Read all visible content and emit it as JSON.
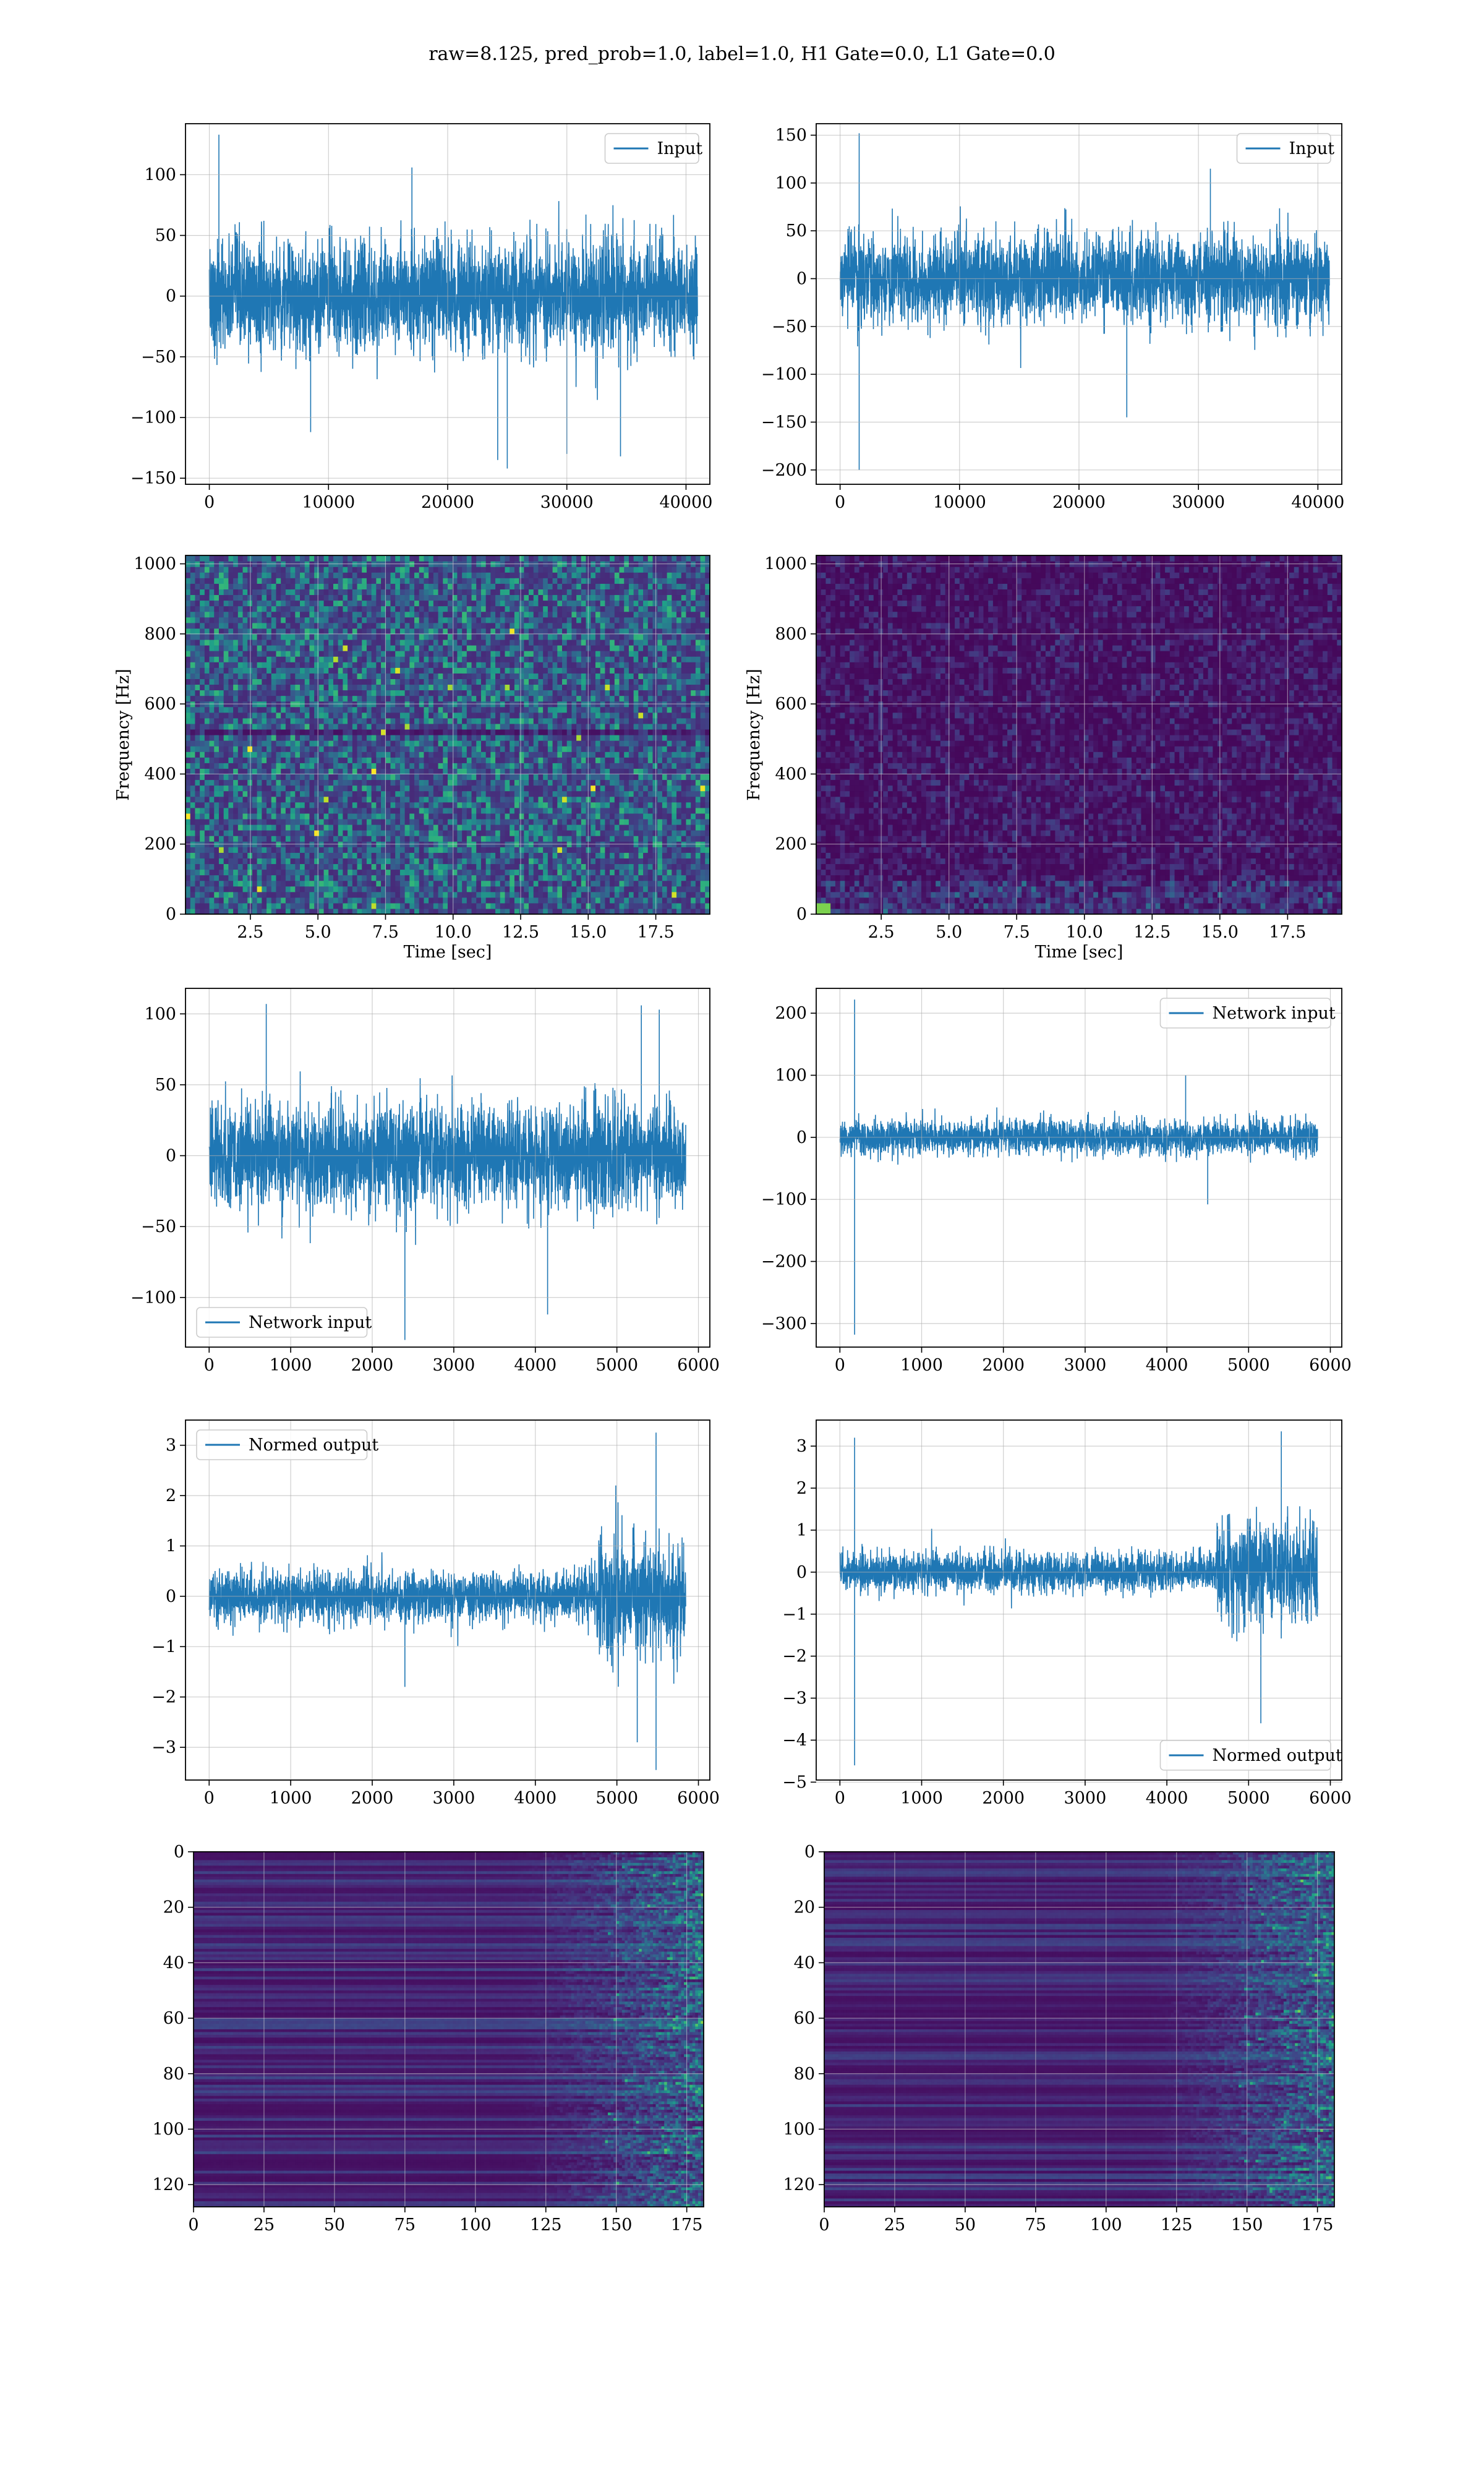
{
  "figure": {
    "title": "raw=8.125, pred_prob=1.0, label=1.0, H1 Gate=0.0, L1 Gate=0.0",
    "colors": {
      "line": "#1f77b4",
      "grid": "#b0b0b0",
      "axes": "#000000",
      "viridis": [
        "#440154",
        "#482878",
        "#3e4989",
        "#31688e",
        "#26828e",
        "#1f9e89",
        "#35b779",
        "#6ece58",
        "#b5de2b",
        "#fde725"
      ]
    }
  },
  "chart_data": [
    {
      "id": "input-h1",
      "type": "line",
      "ylabel": "",
      "xlabel": "",
      "xlim": [
        -2000,
        42000
      ],
      "ylim": [
        -155,
        142
      ],
      "xticks": [
        0,
        10000,
        20000,
        30000,
        40000
      ],
      "xtick_labels": [
        "0",
        "10000",
        "20000",
        "30000",
        "40000"
      ],
      "yticks": [
        -150,
        -100,
        -50,
        0,
        50,
        100
      ],
      "ytick_labels": [
        "−150",
        "−100",
        "−50",
        "0",
        "50",
        "100"
      ],
      "legend": {
        "label": "Input",
        "position": "upper-right"
      },
      "series": [
        {
          "name": "Input",
          "x_range": [
            0,
            40960
          ],
          "band": [
            -50,
            50
          ],
          "peaks": [
            [
              800,
              133
            ],
            [
              17000,
              106
            ],
            [
              8500,
              -112
            ],
            [
              24200,
              -135
            ],
            [
              25000,
              -142
            ],
            [
              30000,
              -130
            ],
            [
              34500,
              -132
            ]
          ]
        }
      ],
      "grid": true
    },
    {
      "id": "input-l1",
      "type": "line",
      "ylabel": "",
      "xlabel": "",
      "xlim": [
        -2000,
        42000
      ],
      "ylim": [
        -215,
        162
      ],
      "xticks": [
        0,
        10000,
        20000,
        30000,
        40000
      ],
      "xtick_labels": [
        "0",
        "10000",
        "20000",
        "30000",
        "40000"
      ],
      "yticks": [
        -200,
        -150,
        -100,
        -50,
        0,
        50,
        100,
        150
      ],
      "ytick_labels": [
        "−200",
        "−150",
        "−100",
        "−50",
        "0",
        "50",
        "100",
        "150"
      ],
      "legend": {
        "label": "Input",
        "position": "upper-right"
      },
      "series": [
        {
          "name": "Input",
          "x_range": [
            0,
            40960
          ],
          "band": [
            -50,
            50
          ],
          "peaks": [
            [
              1600,
              152
            ],
            [
              1600,
              -200
            ],
            [
              24000,
              -145
            ],
            [
              31000,
              115
            ]
          ]
        }
      ],
      "grid": true
    },
    {
      "id": "spectrogram-h1",
      "type": "heatmap",
      "xlabel": "Time [sec]",
      "ylabel": "Frequency [Hz]",
      "xlim": [
        0.1,
        19.5
      ],
      "ylim": [
        0,
        1024
      ],
      "xticks": [
        2.5,
        5.0,
        7.5,
        10.0,
        12.5,
        15.0,
        17.5
      ],
      "xtick_labels": [
        "2.5",
        "5.0",
        "7.5",
        "10.0",
        "12.5",
        "15.0",
        "17.5"
      ],
      "yticks": [
        0,
        200,
        400,
        600,
        800,
        1000
      ],
      "ytick_labels": [
        "0",
        "200",
        "400",
        "600",
        "800",
        "1000"
      ],
      "intensity": "broadband noise with a dark line near 500 Hz and bright bins near 0 Hz",
      "grid": true
    },
    {
      "id": "spectrogram-l1",
      "type": "heatmap",
      "xlabel": "Time [sec]",
      "ylabel": "Frequency [Hz]",
      "xlim": [
        0.1,
        19.5
      ],
      "ylim": [
        0,
        1024
      ],
      "xticks": [
        2.5,
        5.0,
        7.5,
        10.0,
        12.5,
        15.0,
        17.5
      ],
      "xtick_labels": [
        "2.5",
        "5.0",
        "7.5",
        "10.0",
        "12.5",
        "15.0",
        "17.5"
      ],
      "yticks": [
        0,
        200,
        400,
        600,
        800,
        1000
      ],
      "ytick_labels": [
        "0",
        "200",
        "400",
        "600",
        "800",
        "1000"
      ],
      "intensity": "mostly dark with low-frequency energy and a bright spot near 0.6 s, 40 Hz",
      "grid": true
    },
    {
      "id": "network-input-h1",
      "type": "line",
      "ylabel": "",
      "xlabel": "",
      "xlim": [
        -290,
        6140
      ],
      "ylim": [
        -135,
        118
      ],
      "xticks": [
        0,
        1000,
        2000,
        3000,
        4000,
        5000,
        6000
      ],
      "xtick_labels": [
        "0",
        "1000",
        "2000",
        "3000",
        "4000",
        "5000",
        "6000"
      ],
      "yticks": [
        -100,
        -50,
        0,
        50,
        100
      ],
      "ytick_labels": [
        "−100",
        "−50",
        "0",
        "50",
        "100"
      ],
      "legend": {
        "label": "Network input",
        "position": "lower-left"
      },
      "series": [
        {
          "name": "Network input",
          "x_range": [
            0,
            5844
          ],
          "band": [
            -40,
            40
          ],
          "peaks": [
            [
              700,
              107
            ],
            [
              2400,
              -130
            ],
            [
              4150,
              -112
            ],
            [
              5300,
              106
            ],
            [
              5520,
              103
            ]
          ]
        }
      ],
      "grid": true
    },
    {
      "id": "network-input-l1",
      "type": "line",
      "ylabel": "",
      "xlabel": "",
      "xlim": [
        -290,
        6140
      ],
      "ylim": [
        -338,
        240
      ],
      "xticks": [
        0,
        1000,
        2000,
        3000,
        4000,
        5000,
        6000
      ],
      "xtick_labels": [
        "0",
        "1000",
        "2000",
        "3000",
        "4000",
        "5000",
        "6000"
      ],
      "yticks": [
        -300,
        -200,
        -100,
        0,
        100,
        200
      ],
      "ytick_labels": [
        "−300",
        "−200",
        "−100",
        "0",
        "100",
        "200"
      ],
      "legend": {
        "label": "Network input",
        "position": "upper-right"
      },
      "series": [
        {
          "name": "Network input",
          "x_range": [
            0,
            5844
          ],
          "band": [
            -30,
            30
          ],
          "peaks": [
            [
              180,
              222
            ],
            [
              180,
              -318
            ],
            [
              4230,
              100
            ],
            [
              4500,
              -108
            ]
          ]
        }
      ],
      "grid": true
    },
    {
      "id": "normed-output-h1",
      "type": "line",
      "ylabel": "",
      "xlabel": "",
      "xlim": [
        -290,
        6140
      ],
      "ylim": [
        -3.65,
        3.5
      ],
      "xticks": [
        0,
        1000,
        2000,
        3000,
        4000,
        5000,
        6000
      ],
      "xtick_labels": [
        "0",
        "1000",
        "2000",
        "3000",
        "4000",
        "5000",
        "6000"
      ],
      "yticks": [
        -3,
        -2,
        -1,
        0,
        1,
        2,
        3
      ],
      "ytick_labels": [
        "−3",
        "−2",
        "−1",
        "0",
        "1",
        "2",
        "3"
      ],
      "legend": {
        "label": "Normed output",
        "position": "upper-left"
      },
      "series": [
        {
          "name": "Normed output",
          "x_range": [
            0,
            5844
          ],
          "band": [
            -0.55,
            0.55
          ],
          "burst": {
            "from": 4750,
            "band": [
              -1.3,
              1.3
            ]
          },
          "peaks": [
            [
              5480,
              3.25
            ],
            [
              5480,
              -3.45
            ],
            [
              5250,
              -2.9
            ],
            [
              2400,
              -1.8
            ]
          ]
        }
      ],
      "grid": true
    },
    {
      "id": "normed-output-l1",
      "type": "line",
      "ylabel": "",
      "xlabel": "",
      "xlim": [
        -290,
        6140
      ],
      "ylim": [
        -4.95,
        3.62
      ],
      "xticks": [
        0,
        1000,
        2000,
        3000,
        4000,
        5000,
        6000
      ],
      "xtick_labels": [
        "0",
        "1000",
        "2000",
        "3000",
        "4000",
        "5000",
        "6000"
      ],
      "yticks": [
        -5,
        -4,
        -3,
        -2,
        -1,
        0,
        1,
        2,
        3
      ],
      "ytick_labels": [
        "−5",
        "−4",
        "−3",
        "−2",
        "−1",
        "0",
        "1",
        "2",
        "3"
      ],
      "legend": {
        "label": "Normed output",
        "position": "lower-right"
      },
      "series": [
        {
          "name": "Normed output",
          "x_range": [
            0,
            5844
          ],
          "band": [
            -0.5,
            0.5
          ],
          "burst": {
            "from": 4600,
            "band": [
              -1.3,
              1.3
            ]
          },
          "peaks": [
            [
              180,
              3.2
            ],
            [
              180,
              -4.6
            ],
            [
              5400,
              3.35
            ],
            [
              5150,
              -3.6
            ]
          ]
        }
      ],
      "grid": true
    },
    {
      "id": "feature-map-h1",
      "type": "heatmap",
      "ylabel": "",
      "xlabel": "",
      "xlim": [
        0,
        181
      ],
      "ylim": [
        128,
        0
      ],
      "xticks": [
        0,
        25,
        50,
        75,
        100,
        125,
        150,
        175
      ],
      "xtick_labels": [
        "0",
        "25",
        "50",
        "75",
        "100",
        "125",
        "150",
        "175"
      ],
      "yticks": [
        0,
        20,
        40,
        60,
        80,
        100,
        120
      ],
      "ytick_labels": [
        "0",
        "20",
        "40",
        "60",
        "80",
        "100",
        "120"
      ],
      "intensity": "dark horizontal bands, streaky activity increasing after x=110, bright spots near x=150-175",
      "grid": true
    },
    {
      "id": "feature-map-l1",
      "type": "heatmap",
      "ylabel": "",
      "xlabel": "",
      "xlim": [
        0,
        181
      ],
      "ylim": [
        128,
        0
      ],
      "xticks": [
        0,
        25,
        50,
        75,
        100,
        125,
        150,
        175
      ],
      "xtick_labels": [
        "0",
        "25",
        "50",
        "75",
        "100",
        "125",
        "150",
        "175"
      ],
      "yticks": [
        0,
        20,
        40,
        60,
        80,
        100,
        120
      ],
      "ytick_labels": [
        "0",
        "20",
        "40",
        "60",
        "80",
        "100",
        "120"
      ],
      "intensity": "dark horizontal bands, streaky activity increasing after x=110, bright spots near x=150-170",
      "grid": true
    }
  ]
}
